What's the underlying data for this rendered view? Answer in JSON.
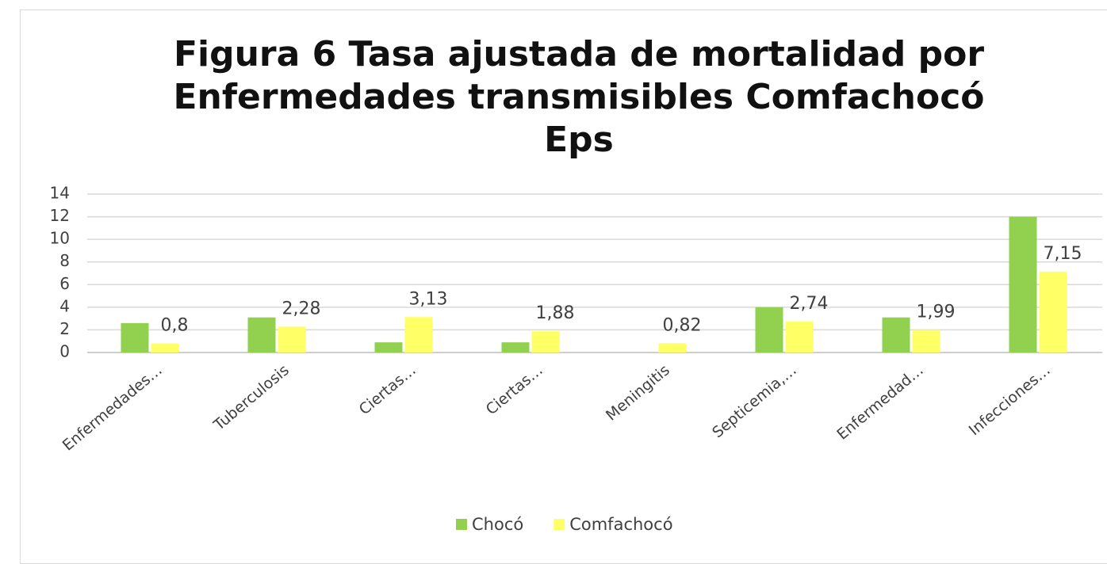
{
  "chart_data": {
    "type": "bar",
    "title": "Figura 6 Tasa ajustada de mortalidad por Enfermedades transmisibles Comfachocó Eps",
    "categories": [
      "Enfermedades…",
      "Tuberculosis",
      "Ciertas…",
      "Ciertas…",
      "Meningitis",
      "Septicemia,…",
      "Enfermedad…",
      "Infecciones…"
    ],
    "series": [
      {
        "name": "Chocó",
        "color": "#92d050",
        "values": [
          2.6,
          3.1,
          0.9,
          0.9,
          null,
          4.0,
          3.1,
          12
        ]
      },
      {
        "name": "Comfachocó",
        "color": "#ffff66",
        "values": [
          0.8,
          2.28,
          3.13,
          1.88,
          0.82,
          2.74,
          1.99,
          7.15
        ],
        "value_labels": [
          "0,8",
          "2,28",
          "3,13",
          "1,88",
          "0,82",
          "2,74",
          "1,99",
          "7,15"
        ]
      }
    ],
    "ylim": [
      0,
      14
    ],
    "yticks": [
      0,
      2,
      4,
      6,
      8,
      10,
      12,
      14
    ],
    "grid": true,
    "legend": "bottom"
  }
}
